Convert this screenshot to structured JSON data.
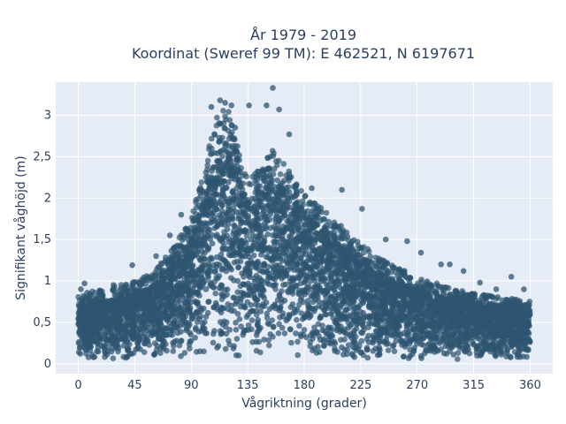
{
  "chart_data": {
    "type": "scatter",
    "title_line1": "År 1979 - 2019",
    "title_line2": "Koordinat (Sweref 99 TM): E 462521, N 6197671",
    "xlabel": "Vågriktning (grader)",
    "ylabel": "Signifikant våghöjd (m)",
    "xlim": [
      -18,
      378
    ],
    "ylim": [
      -0.12,
      3.4
    ],
    "xticks": [
      0,
      45,
      90,
      135,
      180,
      225,
      270,
      315,
      360
    ],
    "xtick_labels": [
      "0",
      "45",
      "90",
      "135",
      "180",
      "225",
      "270",
      "315",
      "360"
    ],
    "yticks": [
      0,
      0.5,
      1,
      1.5,
      2,
      2.5,
      3
    ],
    "ytick_labels": [
      "0",
      "0,5",
      "1",
      "1,5",
      "2",
      "2,5",
      "3"
    ],
    "grid": true,
    "colors": {
      "plot_bg": "#e5ecf6",
      "grid": "#ffffff",
      "marker": "#2e5570",
      "text": "#2a3f5f"
    },
    "envelope": {
      "x": [
        0,
        20,
        45,
        60,
        75,
        90,
        100,
        110,
        118,
        125,
        135,
        145,
        155,
        165,
        180,
        200,
        225,
        250,
        270,
        290,
        315,
        340,
        360
      ],
      "upper": [
        0.85,
        0.9,
        1.0,
        1.1,
        1.4,
        1.75,
        2.4,
        3.0,
        3.15,
        2.75,
        2.25,
        2.35,
        2.6,
        2.4,
        2.05,
        1.8,
        1.45,
        1.2,
        1.05,
        0.95,
        0.85,
        0.8,
        0.75
      ],
      "dense_upper": [
        0.7,
        0.75,
        0.85,
        0.95,
        1.2,
        1.5,
        2.0,
        2.5,
        2.6,
        2.35,
        2.0,
        2.1,
        2.25,
        2.1,
        1.8,
        1.55,
        1.25,
        1.0,
        0.9,
        0.8,
        0.75,
        0.7,
        0.65
      ],
      "lower": 0.05
    },
    "outliers": [
      {
        "x": 2,
        "y": 0.9
      },
      {
        "x": 5,
        "y": 0.97
      },
      {
        "x": 28,
        "y": 0.95
      },
      {
        "x": 43,
        "y": 1.19
      },
      {
        "x": 62,
        "y": 1.3
      },
      {
        "x": 73,
        "y": 1.55
      },
      {
        "x": 82,
        "y": 1.8
      },
      {
        "x": 106,
        "y": 3.1
      },
      {
        "x": 113,
        "y": 3.18
      },
      {
        "x": 117,
        "y": 3.15
      },
      {
        "x": 122,
        "y": 3.12
      },
      {
        "x": 125,
        "y": 2.85
      },
      {
        "x": 136,
        "y": 3.12
      },
      {
        "x": 150,
        "y": 3.12
      },
      {
        "x": 155,
        "y": 3.33
      },
      {
        "x": 160,
        "y": 3.07
      },
      {
        "x": 168,
        "y": 2.77
      },
      {
        "x": 186,
        "y": 2.12
      },
      {
        "x": 210,
        "y": 2.1
      },
      {
        "x": 226,
        "y": 1.87
      },
      {
        "x": 245,
        "y": 1.5
      },
      {
        "x": 262,
        "y": 1.48
      },
      {
        "x": 273,
        "y": 1.34
      },
      {
        "x": 289,
        "y": 1.2
      },
      {
        "x": 296,
        "y": 1.2
      },
      {
        "x": 307,
        "y": 1.12
      },
      {
        "x": 320,
        "y": 0.98
      },
      {
        "x": 333,
        "y": 0.9
      },
      {
        "x": 345,
        "y": 1.05
      },
      {
        "x": 355,
        "y": 0.9
      }
    ]
  }
}
